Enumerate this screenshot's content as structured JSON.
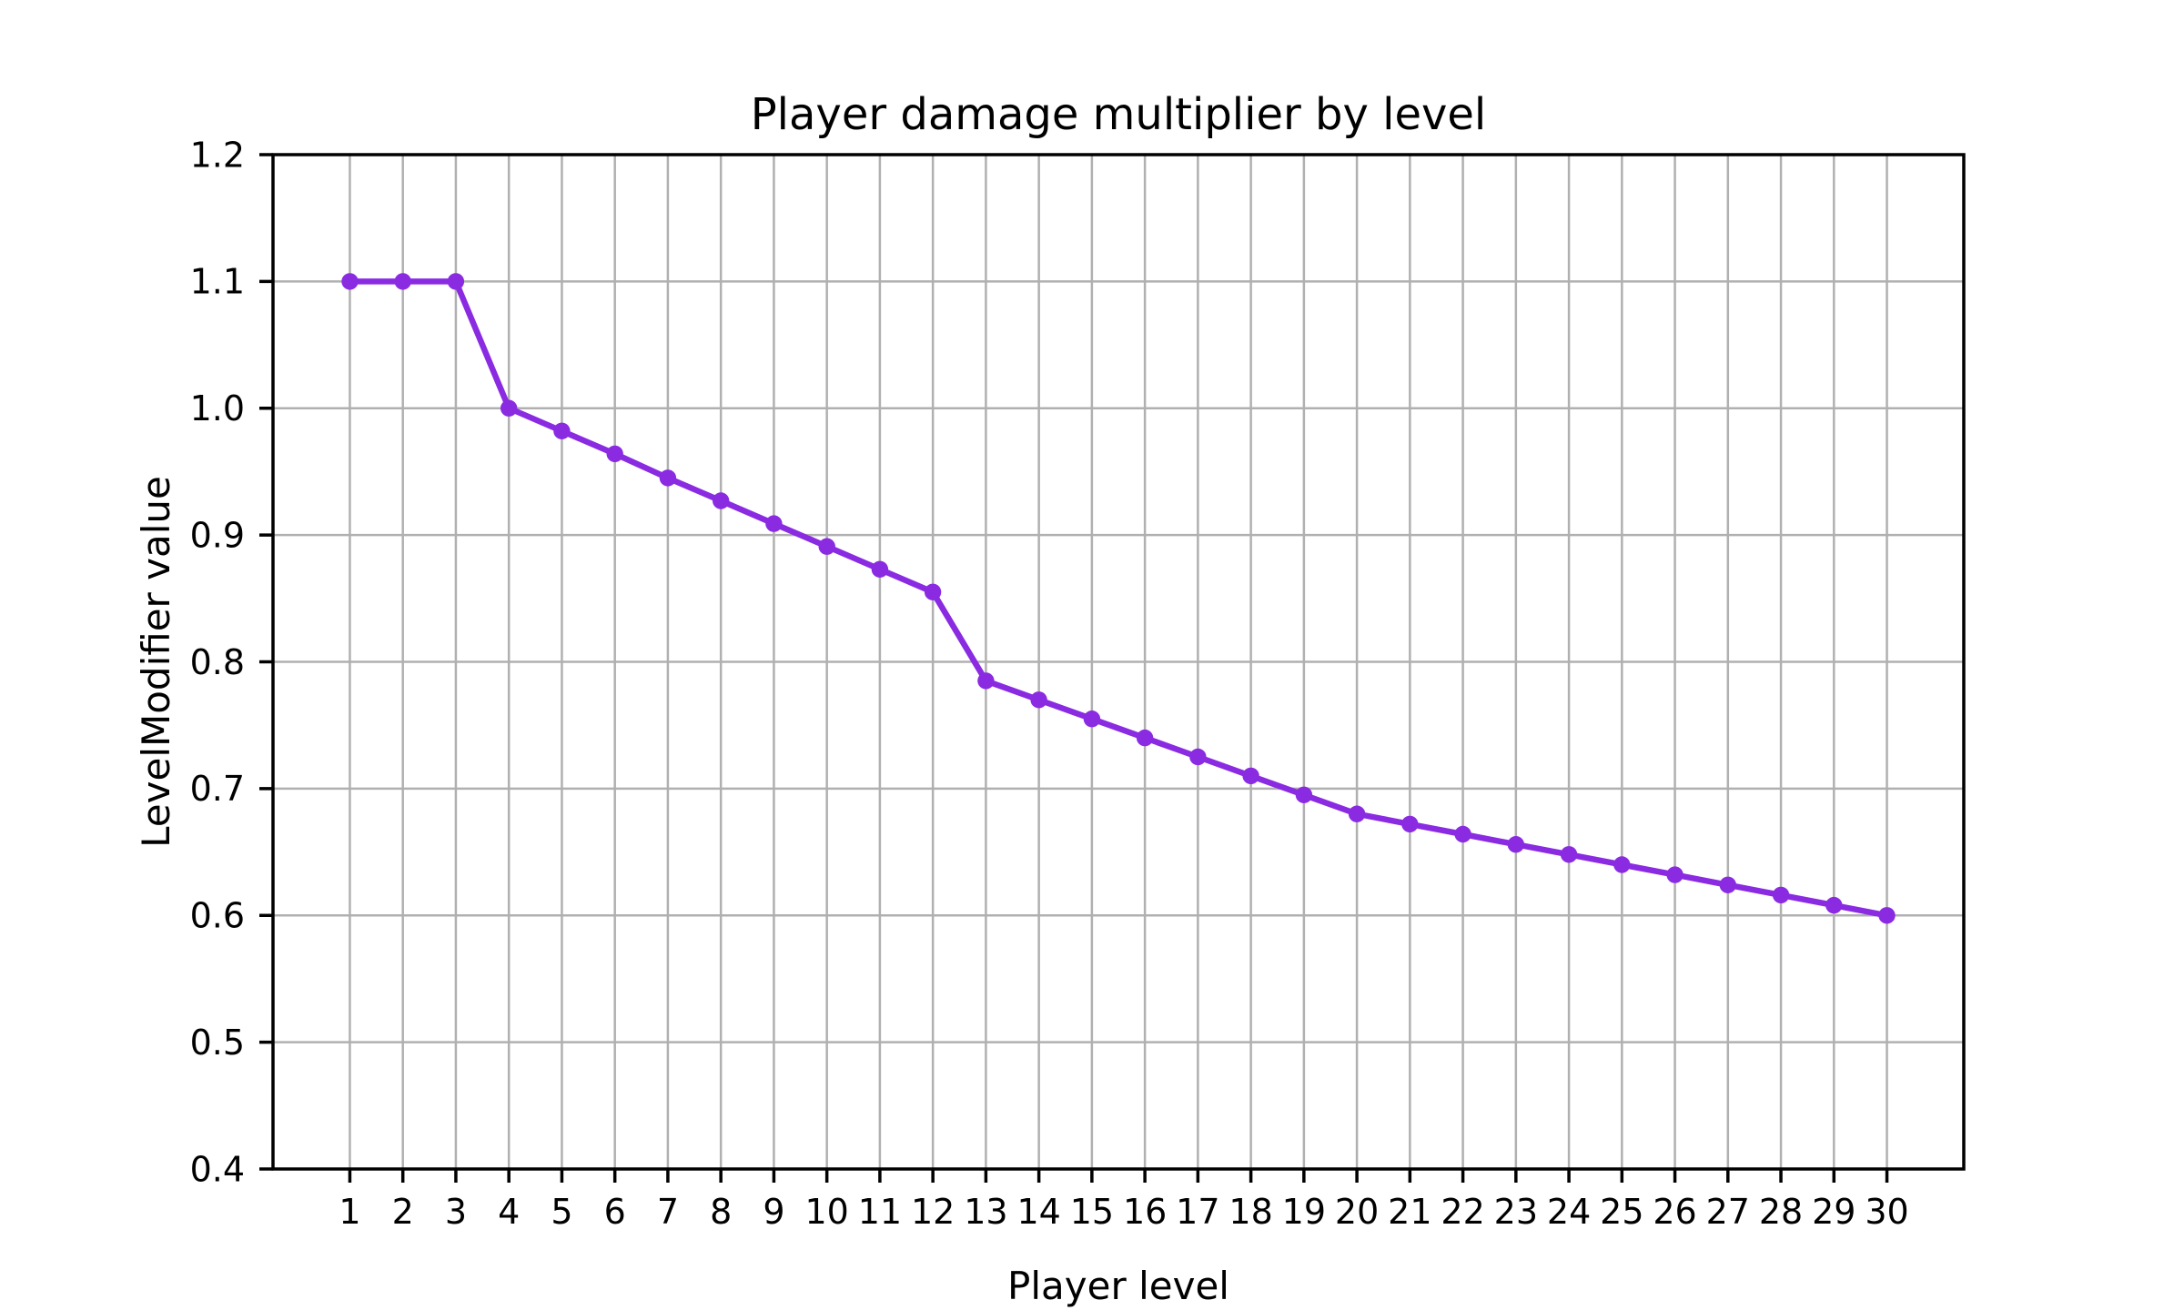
{
  "chart_data": {
    "type": "line",
    "title": "Player damage multiplier by level",
    "xlabel": "Player level",
    "ylabel": "LevelModifier value",
    "x": [
      1,
      2,
      3,
      4,
      5,
      6,
      7,
      8,
      9,
      10,
      11,
      12,
      13,
      14,
      15,
      16,
      17,
      18,
      19,
      20,
      21,
      22,
      23,
      24,
      25,
      26,
      27,
      28,
      29,
      30
    ],
    "values": [
      1.1,
      1.1,
      1.1,
      1.0,
      0.982,
      0.964,
      0.945,
      0.927,
      0.909,
      0.891,
      0.873,
      0.855,
      0.785,
      0.77,
      0.755,
      0.74,
      0.725,
      0.71,
      0.695,
      0.68,
      0.672,
      0.664,
      0.656,
      0.648,
      0.64,
      0.632,
      0.624,
      0.616,
      0.608,
      0.6
    ],
    "x_tick_labels": [
      "1",
      "2",
      "3",
      "4",
      "5",
      "6",
      "7",
      "8",
      "9",
      "10",
      "11",
      "12",
      "13",
      "14",
      "15",
      "16",
      "17",
      "18",
      "19",
      "20",
      "21",
      "22",
      "23",
      "24",
      "25",
      "26",
      "27",
      "28",
      "29",
      "30"
    ],
    "y_ticks": [
      1.2,
      1.1,
      1.0,
      0.9,
      0.8,
      0.7,
      0.6,
      0.5,
      0.4
    ],
    "y_tick_labels": [
      "1.2",
      "1.1",
      "1.0",
      "0.9",
      "0.8",
      "0.7",
      "0.6",
      "0.5",
      "0.4"
    ],
    "xlim": [
      -0.45,
      31.45
    ],
    "ylim": [
      0.4,
      1.2
    ],
    "grid": true,
    "legend_position": "none",
    "marker_style": "circle",
    "colors": {
      "line": "#8A2BE2",
      "marker": "#8A2BE2",
      "grid": "#b0b0b0",
      "spine": "#000000",
      "text": "#000000",
      "background": "#ffffff"
    }
  }
}
